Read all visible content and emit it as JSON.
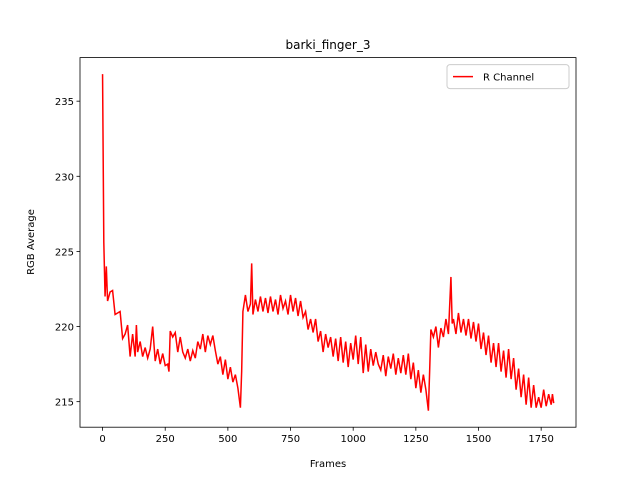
{
  "chart_data": {
    "type": "line",
    "title": "barki_finger_3",
    "xlabel": "Frames",
    "ylabel": "RGB Average",
    "x": [
      0,
      5,
      10,
      15,
      20,
      30,
      40,
      50,
      60,
      70,
      80,
      90,
      100,
      110,
      120,
      130,
      135,
      140,
      150,
      160,
      170,
      180,
      190,
      200,
      210,
      220,
      230,
      240,
      250,
      260,
      265,
      270,
      280,
      290,
      300,
      310,
      320,
      330,
      340,
      350,
      360,
      370,
      380,
      390,
      400,
      410,
      420,
      430,
      440,
      450,
      460,
      470,
      480,
      490,
      500,
      510,
      520,
      530,
      540,
      550,
      555,
      560,
      570,
      580,
      590,
      595,
      600,
      610,
      620,
      630,
      640,
      650,
      660,
      670,
      680,
      690,
      700,
      710,
      720,
      730,
      740,
      750,
      760,
      770,
      780,
      790,
      800,
      810,
      820,
      830,
      840,
      850,
      860,
      870,
      880,
      890,
      900,
      910,
      920,
      930,
      940,
      950,
      960,
      970,
      980,
      990,
      1000,
      1010,
      1020,
      1030,
      1040,
      1050,
      1060,
      1070,
      1080,
      1090,
      1100,
      1110,
      1120,
      1130,
      1140,
      1150,
      1160,
      1170,
      1180,
      1190,
      1200,
      1210,
      1220,
      1230,
      1240,
      1250,
      1260,
      1270,
      1280,
      1290,
      1300,
      1305,
      1310,
      1320,
      1330,
      1340,
      1350,
      1360,
      1370,
      1380,
      1390,
      1395,
      1400,
      1410,
      1420,
      1430,
      1440,
      1450,
      1460,
      1470,
      1480,
      1490,
      1500,
      1510,
      1520,
      1530,
      1540,
      1550,
      1560,
      1570,
      1580,
      1590,
      1600,
      1610,
      1620,
      1630,
      1640,
      1650,
      1660,
      1670,
      1680,
      1690,
      1700,
      1710,
      1720,
      1730,
      1740,
      1750,
      1760,
      1770,
      1780,
      1790,
      1795,
      1800
    ],
    "series": [
      {
        "name": "R Channel",
        "color": "#ff0000",
        "values": [
          236.8,
          225.6,
          222,
          224,
          221.7,
          222.3,
          222.4,
          220.8,
          220.9,
          221,
          219.2,
          219.5,
          220.1,
          218,
          219.5,
          218,
          220.1,
          218.3,
          219,
          218,
          218.6,
          217.9,
          218.5,
          220,
          217.7,
          218.5,
          217.5,
          218.2,
          217.4,
          217.5,
          217,
          219.7,
          219.3,
          219.6,
          218.3,
          219.3,
          218.3,
          217.9,
          218.5,
          217.7,
          218.4,
          217.9,
          219,
          218.5,
          219.5,
          218.3,
          219.4,
          218.8,
          219.4,
          218.4,
          217.5,
          218,
          216.8,
          217.8,
          216.5,
          217.3,
          216.3,
          216.8,
          215.9,
          214.6,
          217,
          221,
          222.1,
          221,
          221.5,
          224.2,
          220.8,
          221.8,
          221,
          222,
          221,
          221.9,
          220.9,
          222,
          221,
          221.8,
          220.8,
          222.1,
          221.2,
          221.7,
          220.8,
          222.1,
          221,
          221.9,
          220.7,
          221.7,
          220.6,
          221,
          219.8,
          220.5,
          219.6,
          220.5,
          219,
          219.7,
          218.3,
          219.5,
          218.6,
          219.3,
          218,
          219.2,
          217.7,
          219.3,
          217.6,
          219,
          217.3,
          218.9,
          217.8,
          219.4,
          217.5,
          219.3,
          216.9,
          218.8,
          217,
          218.5,
          217.4,
          218.3,
          217.5,
          217.1,
          218.1,
          216.7,
          218,
          217.2,
          218.2,
          216.8,
          217.9,
          216.9,
          218.1,
          216.8,
          218.2,
          216.5,
          217.6,
          215.9,
          217.1,
          215.6,
          216.8,
          215.8,
          214.4,
          217,
          219.8,
          219.3,
          220,
          218.6,
          219.9,
          219.3,
          220.5,
          219.5,
          223.3,
          220.2,
          220.5,
          219.5,
          220.9,
          219.6,
          220.5,
          219.4,
          220.5,
          219.2,
          220.3,
          219,
          220.2,
          218.5,
          219.6,
          218.1,
          219.4,
          217.6,
          218.9,
          217.3,
          218.9,
          217,
          218.4,
          216.6,
          218.5,
          216.5,
          217.9,
          215.8,
          217.2,
          215.3,
          216.8,
          214.8,
          216.6,
          214.6,
          216.1,
          214.6,
          215.3,
          214.6,
          215.8,
          214.7,
          215.5,
          214.8,
          215.5,
          214.9
        ]
      }
    ],
    "xlim": [
      -90,
      1889
    ],
    "ylim": [
      213.3,
      237.9
    ],
    "xticks": [
      0,
      250,
      500,
      750,
      1000,
      1250,
      1500,
      1750
    ],
    "yticks": [
      215,
      220,
      225,
      230,
      235
    ],
    "legend": "upper right"
  }
}
